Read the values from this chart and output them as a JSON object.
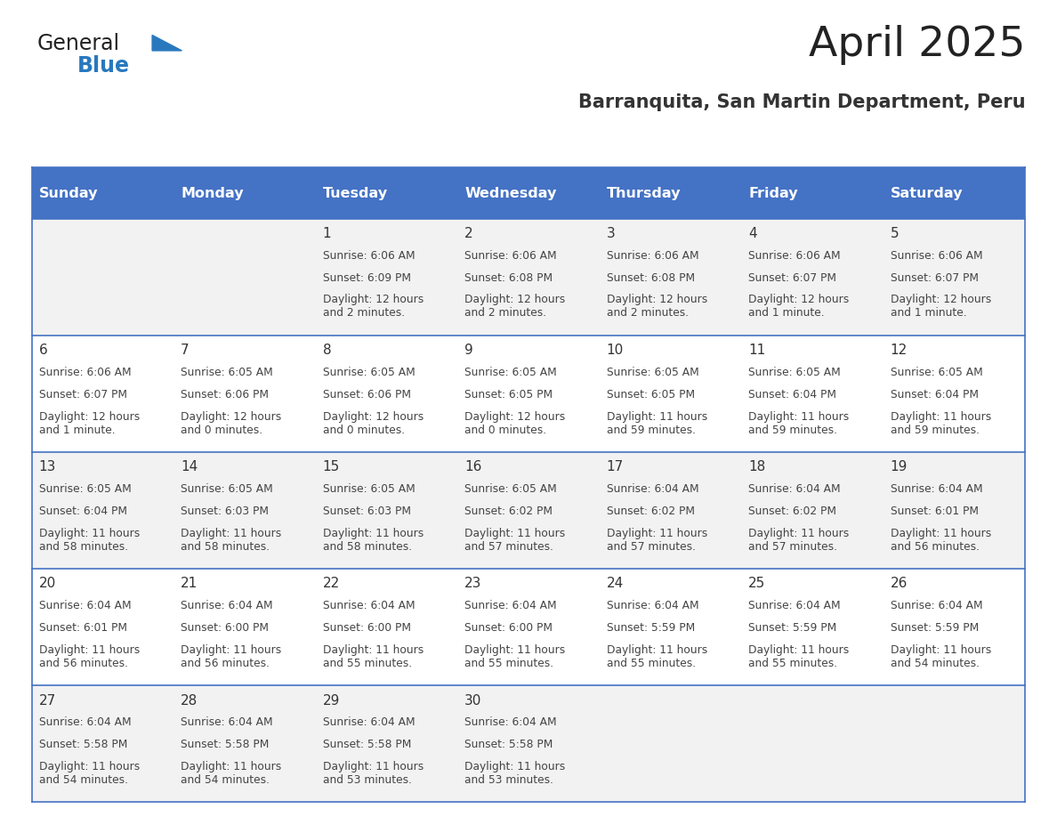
{
  "title": "April 2025",
  "subtitle": "Barranquita, San Martin Department, Peru",
  "days_of_week": [
    "Sunday",
    "Monday",
    "Tuesday",
    "Wednesday",
    "Thursday",
    "Friday",
    "Saturday"
  ],
  "header_bg": "#4472C4",
  "header_text": "#FFFFFF",
  "row_bg_even": "#FFFFFF",
  "row_bg_odd": "#F2F2F2",
  "cell_border": "#4472C4",
  "title_color": "#222222",
  "subtitle_color": "#333333",
  "day_number_color": "#333333",
  "cell_text_color": "#444444",
  "logo_general_color": "#222222",
  "logo_blue_color": "#2878BE",
  "calendar_data": [
    [
      null,
      null,
      {
        "day": 1,
        "sunrise": "6:06 AM",
        "sunset": "6:09 PM",
        "daylight": "12 hours\nand 2 minutes."
      },
      {
        "day": 2,
        "sunrise": "6:06 AM",
        "sunset": "6:08 PM",
        "daylight": "12 hours\nand 2 minutes."
      },
      {
        "day": 3,
        "sunrise": "6:06 AM",
        "sunset": "6:08 PM",
        "daylight": "12 hours\nand 2 minutes."
      },
      {
        "day": 4,
        "sunrise": "6:06 AM",
        "sunset": "6:07 PM",
        "daylight": "12 hours\nand 1 minute."
      },
      {
        "day": 5,
        "sunrise": "6:06 AM",
        "sunset": "6:07 PM",
        "daylight": "12 hours\nand 1 minute."
      }
    ],
    [
      {
        "day": 6,
        "sunrise": "6:06 AM",
        "sunset": "6:07 PM",
        "daylight": "12 hours\nand 1 minute."
      },
      {
        "day": 7,
        "sunrise": "6:05 AM",
        "sunset": "6:06 PM",
        "daylight": "12 hours\nand 0 minutes."
      },
      {
        "day": 8,
        "sunrise": "6:05 AM",
        "sunset": "6:06 PM",
        "daylight": "12 hours\nand 0 minutes."
      },
      {
        "day": 9,
        "sunrise": "6:05 AM",
        "sunset": "6:05 PM",
        "daylight": "12 hours\nand 0 minutes."
      },
      {
        "day": 10,
        "sunrise": "6:05 AM",
        "sunset": "6:05 PM",
        "daylight": "11 hours\nand 59 minutes."
      },
      {
        "day": 11,
        "sunrise": "6:05 AM",
        "sunset": "6:04 PM",
        "daylight": "11 hours\nand 59 minutes."
      },
      {
        "day": 12,
        "sunrise": "6:05 AM",
        "sunset": "6:04 PM",
        "daylight": "11 hours\nand 59 minutes."
      }
    ],
    [
      {
        "day": 13,
        "sunrise": "6:05 AM",
        "sunset": "6:04 PM",
        "daylight": "11 hours\nand 58 minutes."
      },
      {
        "day": 14,
        "sunrise": "6:05 AM",
        "sunset": "6:03 PM",
        "daylight": "11 hours\nand 58 minutes."
      },
      {
        "day": 15,
        "sunrise": "6:05 AM",
        "sunset": "6:03 PM",
        "daylight": "11 hours\nand 58 minutes."
      },
      {
        "day": 16,
        "sunrise": "6:05 AM",
        "sunset": "6:02 PM",
        "daylight": "11 hours\nand 57 minutes."
      },
      {
        "day": 17,
        "sunrise": "6:04 AM",
        "sunset": "6:02 PM",
        "daylight": "11 hours\nand 57 minutes."
      },
      {
        "day": 18,
        "sunrise": "6:04 AM",
        "sunset": "6:02 PM",
        "daylight": "11 hours\nand 57 minutes."
      },
      {
        "day": 19,
        "sunrise": "6:04 AM",
        "sunset": "6:01 PM",
        "daylight": "11 hours\nand 56 minutes."
      }
    ],
    [
      {
        "day": 20,
        "sunrise": "6:04 AM",
        "sunset": "6:01 PM",
        "daylight": "11 hours\nand 56 minutes."
      },
      {
        "day": 21,
        "sunrise": "6:04 AM",
        "sunset": "6:00 PM",
        "daylight": "11 hours\nand 56 minutes."
      },
      {
        "day": 22,
        "sunrise": "6:04 AM",
        "sunset": "6:00 PM",
        "daylight": "11 hours\nand 55 minutes."
      },
      {
        "day": 23,
        "sunrise": "6:04 AM",
        "sunset": "6:00 PM",
        "daylight": "11 hours\nand 55 minutes."
      },
      {
        "day": 24,
        "sunrise": "6:04 AM",
        "sunset": "5:59 PM",
        "daylight": "11 hours\nand 55 minutes."
      },
      {
        "day": 25,
        "sunrise": "6:04 AM",
        "sunset": "5:59 PM",
        "daylight": "11 hours\nand 55 minutes."
      },
      {
        "day": 26,
        "sunrise": "6:04 AM",
        "sunset": "5:59 PM",
        "daylight": "11 hours\nand 54 minutes."
      }
    ],
    [
      {
        "day": 27,
        "sunrise": "6:04 AM",
        "sunset": "5:58 PM",
        "daylight": "11 hours\nand 54 minutes."
      },
      {
        "day": 28,
        "sunrise": "6:04 AM",
        "sunset": "5:58 PM",
        "daylight": "11 hours\nand 54 minutes."
      },
      {
        "day": 29,
        "sunrise": "6:04 AM",
        "sunset": "5:58 PM",
        "daylight": "11 hours\nand 53 minutes."
      },
      {
        "day": 30,
        "sunrise": "6:04 AM",
        "sunset": "5:58 PM",
        "daylight": "11 hours\nand 53 minutes."
      },
      null,
      null,
      null
    ]
  ]
}
